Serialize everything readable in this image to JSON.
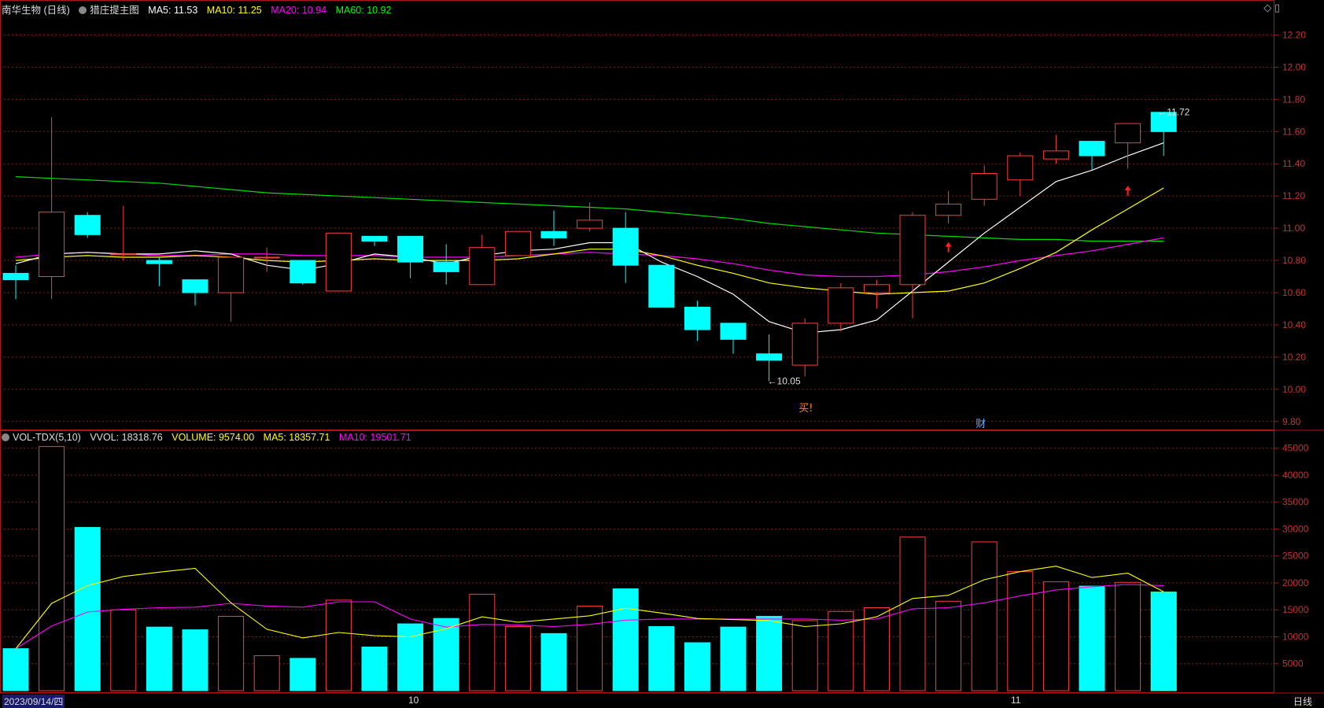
{
  "header": {
    "stock": "南华生物 (日线)",
    "indicator": "猎庄提主图",
    "ma5": "MA5: 11.53",
    "ma10": "MA10: 11.25",
    "ma20": "MA20: 10.94",
    "ma60": "MA60: 10.92",
    "colors": {
      "ma5": "#ffffff",
      "ma10": "#ffff00",
      "ma20": "#ff00ff",
      "ma60": "#00ff00"
    }
  },
  "vol_header": {
    "name": "VOL-TDX(5,10)",
    "vvol": "VVOL: 18318.76",
    "volume": "VOLUME: 9574.00",
    "ma5": "MA5: 18357.71",
    "ma10": "MA10: 19501.71"
  },
  "footer": {
    "date": "2023/09/14/四",
    "month_oct": "10",
    "month_nov": "11",
    "period": "日线"
  },
  "chart_data": [
    {
      "type": "candlestick",
      "ylim": [
        9.75,
        12.3
      ],
      "yticks": [
        "12.20",
        "12.00",
        "11.80",
        "11.60",
        "11.40",
        "11.20",
        "11.00",
        "10.80",
        "10.60",
        "10.40",
        "10.20",
        "10.00",
        "9.80"
      ],
      "candles": [
        {
          "o": 10.72,
          "h": 10.77,
          "l": 10.56,
          "c": 10.68
        },
        {
          "o": 10.7,
          "h": 11.69,
          "l": 10.56,
          "c": 11.1
        },
        {
          "o": 11.08,
          "h": 11.1,
          "l": 10.94,
          "c": 10.96
        },
        {
          "o": 10.84,
          "h": 11.14,
          "l": 10.8,
          "c": 10.84
        },
        {
          "o": 10.8,
          "h": 10.82,
          "l": 10.64,
          "c": 10.78
        },
        {
          "o": 10.68,
          "h": 10.68,
          "l": 10.52,
          "c": 10.6
        },
        {
          "o": 10.6,
          "h": 10.82,
          "l": 10.42,
          "c": 10.82
        },
        {
          "o": 10.82,
          "h": 10.88,
          "l": 10.73,
          "c": 10.82
        },
        {
          "o": 10.8,
          "h": 10.8,
          "l": 10.65,
          "c": 10.66
        },
        {
          "o": 10.61,
          "h": 10.97,
          "l": 10.61,
          "c": 10.97
        },
        {
          "o": 10.95,
          "h": 10.95,
          "l": 10.89,
          "c": 10.92
        },
        {
          "o": 10.95,
          "h": 10.95,
          "l": 10.69,
          "c": 10.79
        },
        {
          "o": 10.79,
          "h": 10.9,
          "l": 10.65,
          "c": 10.73
        },
        {
          "o": 10.65,
          "h": 10.96,
          "l": 10.65,
          "c": 10.88
        },
        {
          "o": 10.83,
          "h": 10.98,
          "l": 10.83,
          "c": 10.98
        },
        {
          "o": 10.98,
          "h": 11.11,
          "l": 10.89,
          "c": 10.94
        },
        {
          "o": 11.0,
          "h": 11.16,
          "l": 10.98,
          "c": 11.05
        },
        {
          "o": 11.0,
          "h": 11.1,
          "l": 10.66,
          "c": 10.77
        },
        {
          "o": 10.77,
          "h": 10.77,
          "l": 10.51,
          "c": 10.51
        },
        {
          "o": 10.51,
          "h": 10.55,
          "l": 10.3,
          "c": 10.37
        },
        {
          "o": 10.41,
          "h": 10.41,
          "l": 10.22,
          "c": 10.31
        },
        {
          "o": 10.22,
          "h": 10.34,
          "l": 10.05,
          "c": 10.18
        },
        {
          "o": 10.15,
          "h": 10.44,
          "l": 10.08,
          "c": 10.41
        },
        {
          "o": 10.41,
          "h": 10.66,
          "l": 10.36,
          "c": 10.63
        },
        {
          "o": 10.6,
          "h": 10.68,
          "l": 10.5,
          "c": 10.65
        },
        {
          "o": 10.65,
          "h": 11.1,
          "l": 10.44,
          "c": 11.08
        },
        {
          "o": 11.08,
          "h": 11.23,
          "l": 11.03,
          "c": 11.15
        },
        {
          "o": 11.18,
          "h": 11.39,
          "l": 11.14,
          "c": 11.34
        },
        {
          "o": 11.3,
          "h": 11.47,
          "l": 11.2,
          "c": 11.45
        },
        {
          "o": 11.43,
          "h": 11.58,
          "l": 11.4,
          "c": 11.48
        },
        {
          "o": 11.54,
          "h": 11.54,
          "l": 11.36,
          "c": 11.45
        },
        {
          "o": 11.53,
          "h": 11.65,
          "l": 11.37,
          "c": 11.65
        },
        {
          "o": 11.72,
          "h": 11.72,
          "l": 11.45,
          "c": 11.6
        }
      ],
      "up_color": "#ff3c3c",
      "down_color": "#00ffff",
      "ma5": [
        10.78,
        10.84,
        10.85,
        10.84,
        10.84,
        10.86,
        10.84,
        10.77,
        10.74,
        10.78,
        10.84,
        10.82,
        10.78,
        10.83,
        10.86,
        10.87,
        10.91,
        10.91,
        10.79,
        10.7,
        10.59,
        10.42,
        10.35,
        10.37,
        10.43,
        10.61,
        10.79,
        10.97,
        11.13,
        11.29,
        11.36,
        11.45,
        11.53
      ],
      "ma10": [
        10.8,
        10.82,
        10.83,
        10.82,
        10.82,
        10.83,
        10.82,
        10.8,
        10.79,
        10.8,
        10.81,
        10.8,
        10.8,
        10.8,
        10.81,
        10.84,
        10.87,
        10.87,
        10.83,
        10.77,
        10.72,
        10.66,
        10.63,
        10.61,
        10.59,
        10.6,
        10.61,
        10.66,
        10.75,
        10.85,
        10.99,
        11.12,
        11.25
      ],
      "ma20": [
        10.82,
        10.84,
        10.85,
        10.84,
        10.83,
        10.83,
        10.84,
        10.84,
        10.83,
        10.83,
        10.83,
        10.82,
        10.82,
        10.82,
        10.83,
        10.84,
        10.85,
        10.84,
        10.83,
        10.81,
        10.78,
        10.74,
        10.71,
        10.7,
        10.7,
        10.71,
        10.73,
        10.76,
        10.8,
        10.83,
        10.86,
        10.9,
        10.94
      ],
      "ma60": [
        11.32,
        11.31,
        11.3,
        11.29,
        11.28,
        11.26,
        11.24,
        11.22,
        11.21,
        11.2,
        11.19,
        11.18,
        11.17,
        11.16,
        11.15,
        11.14,
        11.13,
        11.12,
        11.1,
        11.08,
        11.06,
        11.03,
        11.01,
        10.99,
        10.97,
        10.96,
        10.95,
        10.94,
        10.93,
        10.93,
        10.92,
        10.92,
        10.92
      ],
      "annotations": {
        "high_label": "11.72",
        "low_label": "10.05",
        "buy_label": "买!",
        "fin_label": "财"
      }
    },
    {
      "type": "bar",
      "ylim": [
        0,
        47000
      ],
      "yticks": [
        "45000",
        "40000",
        "35000",
        "30000",
        "25000",
        "20000",
        "15000",
        "10000",
        "5000"
      ],
      "volumes": [
        7800,
        45300,
        30300,
        15000,
        11800,
        11300,
        13800,
        6500,
        6000,
        16800,
        8100,
        12400,
        13400,
        17900,
        11900,
        10600,
        15700,
        18900,
        11900,
        8900,
        11800,
        13800,
        13000,
        14700,
        15400,
        28500,
        16600,
        27600,
        22100,
        20200,
        19400,
        20100,
        18300
      ],
      "ma5": [
        7800,
        16200,
        19500,
        21200,
        22000,
        22700,
        16300,
        11400,
        9800,
        10800,
        10200,
        10000,
        11500,
        13700,
        12700,
        13300,
        13900,
        15300,
        14400,
        13400,
        13200,
        13000,
        11900,
        12400,
        13700,
        17100,
        17700,
        20600,
        22100,
        23100,
        21000,
        21800,
        18357
      ],
      "ma10": [
        7800,
        12000,
        14600,
        15100,
        15400,
        15500,
        16200,
        15700,
        15500,
        16500,
        16500,
        13300,
        11800,
        12300,
        12200,
        11900,
        12300,
        13100,
        13300,
        13300,
        13300,
        13300,
        13300,
        13100,
        13300,
        15200,
        15400,
        16300,
        17600,
        18700,
        19300,
        19700,
        19501
      ],
      "partial_last_volume": 18318
    }
  ]
}
